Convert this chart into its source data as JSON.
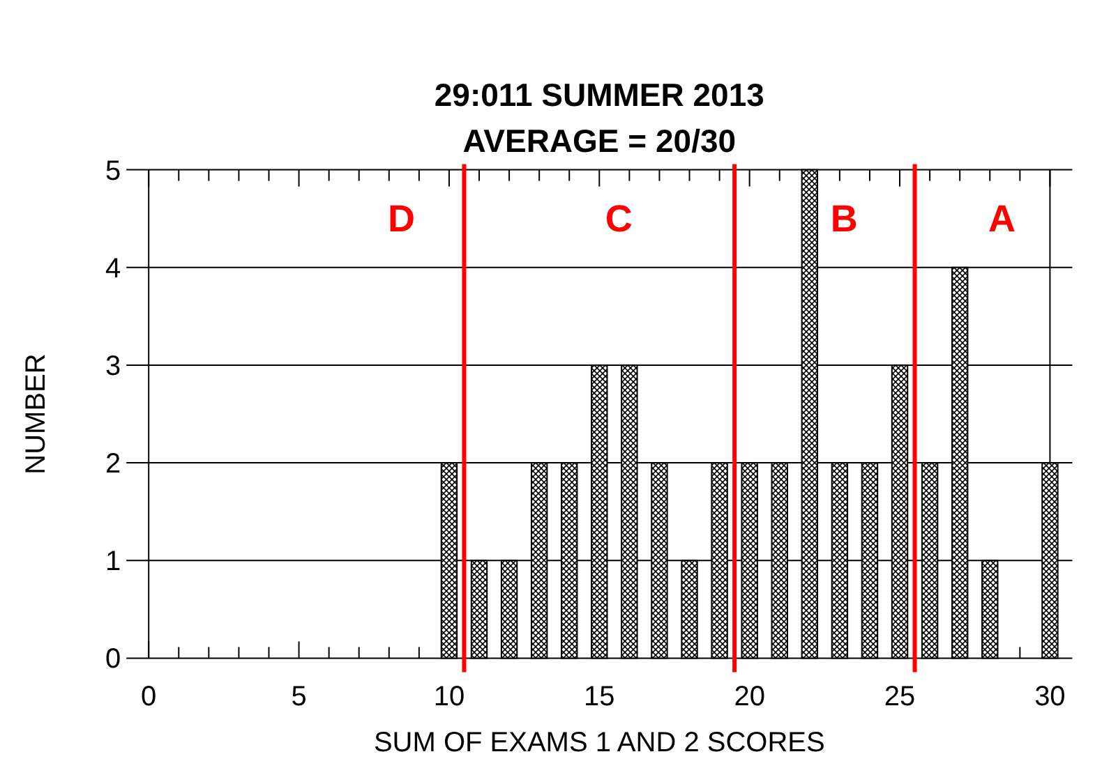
{
  "chart_data": {
    "type": "bar",
    "title": "29:011 SUMMER 2013\nAVERAGE = 20/30",
    "xlabel": "SUM OF EXAMS 1 AND 2 SCORES",
    "ylabel": "NUMBER",
    "x": [
      10,
      11,
      12,
      13,
      14,
      15,
      16,
      17,
      18,
      19,
      20,
      21,
      22,
      23,
      24,
      25,
      26,
      27,
      28,
      30
    ],
    "values": [
      2,
      1,
      1,
      2,
      2,
      3,
      3,
      2,
      1,
      2,
      2,
      2,
      5,
      2,
      2,
      3,
      2,
      4,
      1,
      2
    ],
    "color": "#000000",
    "xlim": [
      0,
      30
    ],
    "ylim": [
      0,
      5
    ],
    "xticks": [
      0,
      {
        "value": 1,
        "label": null
      },
      {
        "value": 2,
        "label": null
      },
      {
        "value": 3,
        "label": null
      },
      {
        "value": 4,
        "label": null
      },
      5,
      {
        "value": 6,
        "label": null
      },
      {
        "value": 7,
        "label": null
      },
      {
        "value": 8,
        "label": null
      },
      {
        "value": 9,
        "label": null
      },
      10,
      {
        "value": 11,
        "label": null
      },
      {
        "value": 12,
        "label": null
      },
      {
        "value": 13,
        "label": null
      },
      {
        "value": 14,
        "label": null
      },
      15,
      {
        "value": 16,
        "label": null
      },
      {
        "value": 17,
        "label": null
      },
      {
        "value": 18,
        "label": null
      },
      {
        "value": 19,
        "label": null
      },
      20,
      {
        "value": 21,
        "label": null
      },
      {
        "value": 22,
        "label": null
      },
      {
        "value": 23,
        "label": null
      },
      {
        "value": 24,
        "label": null
      },
      25,
      {
        "value": 26,
        "label": null
      },
      {
        "value": 27,
        "label": null
      },
      {
        "value": 28,
        "label": null
      },
      {
        "value": 29,
        "label": null
      },
      30
    ],
    "yticks": [
      0,
      1,
      2,
      3,
      4,
      5
    ],
    "grid": "y",
    "ref_lines": [
      {
        "axis": "x",
        "value": 10.5,
        "color": "#ff0000"
      },
      {
        "axis": "x",
        "value": 19.5,
        "color": "#ff0000"
      },
      {
        "axis": "x",
        "value": 25.5,
        "color": "#ff0000"
      }
    ],
    "annotations": [
      "D",
      "C",
      "B",
      "A"
    ]
  }
}
